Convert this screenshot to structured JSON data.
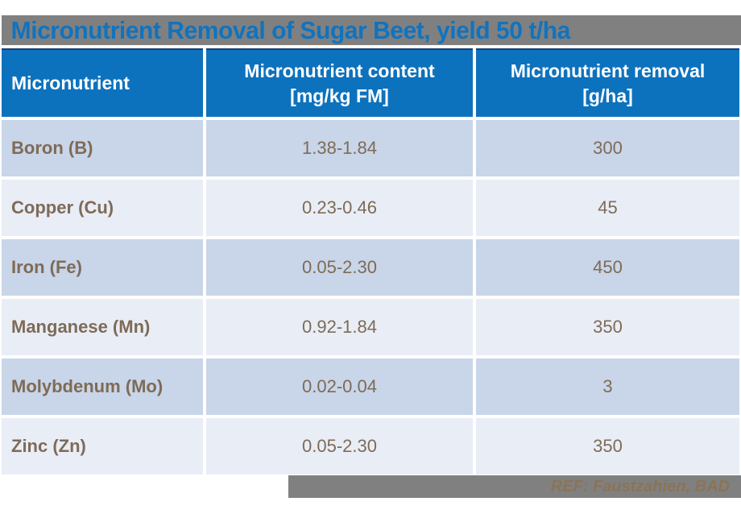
{
  "chart_data": {
    "type": "table",
    "title": "Micronutrient Removal of Sugar Beet, yield 50 t/ha",
    "columns": [
      {
        "label": "Micronutrient",
        "sublabel": ""
      },
      {
        "label": "Micronutrient content",
        "sublabel": "[mg/kg FM]"
      },
      {
        "label": "Micronutrient removal",
        "sublabel": "[g/ha]"
      }
    ],
    "rows": [
      {
        "nutrient": "Boron (B)",
        "content": "1.38-1.84",
        "removal": "300"
      },
      {
        "nutrient": "Copper (Cu)",
        "content": "0.23-0.46",
        "removal": "45"
      },
      {
        "nutrient": "Iron (Fe)",
        "content": "0.05-2.30",
        "removal": "450"
      },
      {
        "nutrient": "Manganese (Mn)",
        "content": "0.92-1.84",
        "removal": "350"
      },
      {
        "nutrient": "Molybdenum (Mo)",
        "content": "0.02-0.04",
        "removal": "3"
      },
      {
        "nutrient": "Zinc (Zn)",
        "content": "0.05-2.30",
        "removal": "350"
      }
    ]
  },
  "footer": {
    "reference": "REF: Faustzahien, BAD"
  },
  "colors": {
    "title_bar_bg": "#808080",
    "title_text": "#1173BE",
    "header_bg": "#0D72BD",
    "header_text": "#FFFFFF",
    "header_top_border": "#1D3C6E",
    "row_dark": "#C9D5E8",
    "row_light": "#E9EDF6",
    "cell_text": "#7E6B57",
    "footer_bg": "#808080",
    "footer_text": "#8A7456"
  }
}
